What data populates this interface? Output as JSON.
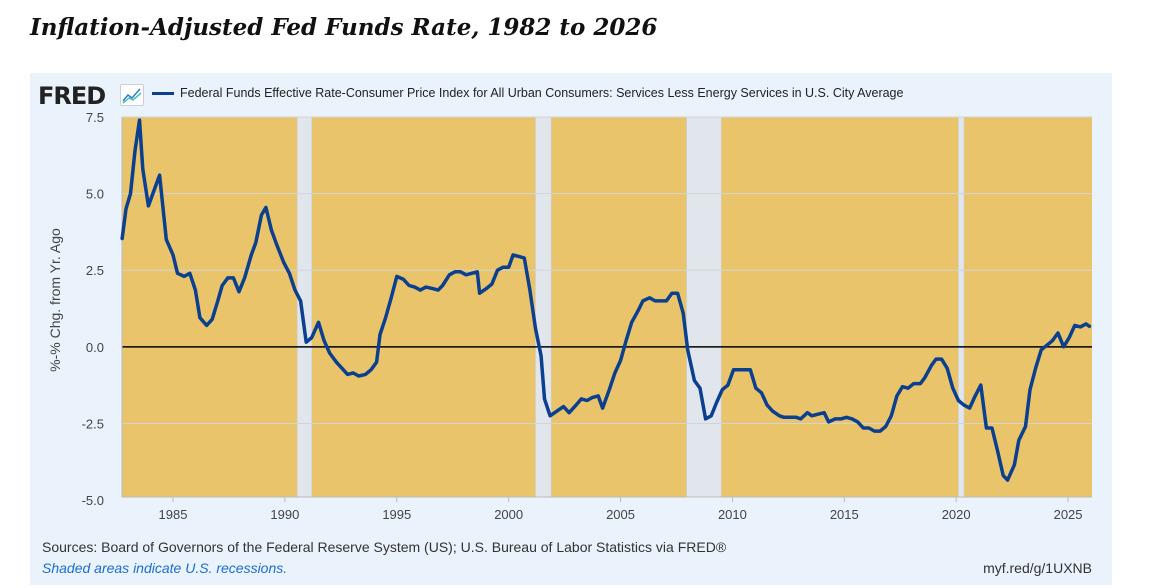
{
  "title": "Inflation-Adjusted Fed Funds Rate, 1982 to 2026",
  "logo": "FRED",
  "footer": {
    "sources": "Sources: Board of Governors of the Federal Reserve System (US); U.S. Bureau of Labor Statistics via FRED®",
    "recession_note": "Shaded areas indicate U.S. recessions.",
    "url": "myf.red/g/1UXNB"
  },
  "colors": {
    "line": "#0b3f8f",
    "plot_bg": "#e9c46a",
    "recession": "#e1e6ec",
    "panel": "#eaf2fb"
  },
  "chart_data": {
    "type": "line",
    "title": "",
    "xlabel": "",
    "ylabel": "%-% Chg. from Yr. Ago",
    "xlim": [
      1982.72,
      2026.07
    ],
    "ylim": [
      -4.9,
      7.5
    ],
    "yticks": [
      7.5,
      5.0,
      2.5,
      0.0,
      -2.5,
      -5.0
    ],
    "ytick_labels": [
      "7.5",
      "5.0",
      "2.5",
      "0.0",
      "-2.5",
      "-5.0"
    ],
    "xticks": [
      1985,
      1990,
      1995,
      2000,
      2005,
      2010,
      2015,
      2020,
      2025
    ],
    "xtick_labels": [
      "1985",
      "1990",
      "1995",
      "2000",
      "2005",
      "2010",
      "2015",
      "2020",
      "2025"
    ],
    "grid": true,
    "legend_position": "top",
    "recessions": [
      [
        1990.55,
        1991.2
      ],
      [
        2001.2,
        2001.9
      ],
      [
        2007.95,
        2009.5
      ],
      [
        2020.1,
        2020.35
      ]
    ],
    "series": [
      {
        "name": "Federal Funds Effective Rate-Consumer Price Index for All Urban Consumers: Services Less Energy Services in U.S. City Average",
        "x": [
          1982.72,
          1982.9,
          1983.1,
          1983.3,
          1983.5,
          1983.65,
          1983.9,
          1984.15,
          1984.4,
          1984.7,
          1985.0,
          1985.2,
          1985.5,
          1985.75,
          1986.0,
          1986.2,
          1986.5,
          1986.75,
          1987.0,
          1987.2,
          1987.45,
          1987.7,
          1987.95,
          1988.2,
          1988.5,
          1988.7,
          1988.95,
          1989.15,
          1989.4,
          1989.65,
          1989.95,
          1990.2,
          1990.45,
          1990.7,
          1990.95,
          1991.2,
          1991.5,
          1991.75,
          1992.0,
          1992.3,
          1992.55,
          1992.8,
          1993.05,
          1993.3,
          1993.6,
          1993.85,
          1994.1,
          1994.25,
          1994.5,
          1994.75,
          1995.0,
          1995.3,
          1995.55,
          1995.8,
          1996.05,
          1996.3,
          1996.6,
          1996.85,
          1997.05,
          1997.35,
          1997.6,
          1997.85,
          1998.1,
          1998.35,
          1998.6,
          1998.7,
          1999.0,
          1999.25,
          1999.5,
          1999.75,
          2000.0,
          2000.2,
          2000.45,
          2000.7,
          2000.95,
          2001.2,
          2001.45,
          2001.6,
          2001.85,
          2002.15,
          2002.45,
          2002.7,
          2002.95,
          2003.25,
          2003.5,
          2003.75,
          2004.0,
          2004.2,
          2004.5,
          2004.75,
          2005.0,
          2005.25,
          2005.5,
          2005.8,
          2006.0,
          2006.3,
          2006.55,
          2006.8,
          2007.05,
          2007.3,
          2007.55,
          2007.8,
          2008.0,
          2008.3,
          2008.55,
          2008.8,
          2009.05,
          2009.3,
          2009.55,
          2009.8,
          2010.05,
          2010.3,
          2010.55,
          2010.8,
          2011.05,
          2011.3,
          2011.55,
          2011.8,
          2012.1,
          2012.3,
          2012.6,
          2012.85,
          2013.05,
          2013.35,
          2013.55,
          2013.8,
          2014.1,
          2014.3,
          2014.6,
          2014.85,
          2015.1,
          2015.35,
          2015.6,
          2015.85,
          2016.1,
          2016.35,
          2016.6,
          2016.85,
          2017.1,
          2017.35,
          2017.6,
          2017.85,
          2018.1,
          2018.4,
          2018.6,
          2018.9,
          2019.1,
          2019.35,
          2019.6,
          2019.85,
          2020.1,
          2020.35,
          2020.6,
          2020.85,
          2021.1,
          2021.35,
          2021.6,
          2021.85,
          2022.1,
          2022.3,
          2022.6,
          2022.8,
          2023.1,
          2023.3,
          2023.55,
          2023.8,
          2024.05,
          2024.3,
          2024.55,
          2024.8,
          2025.05,
          2025.3,
          2025.55,
          2025.8,
          2026.0
        ],
        "y": [
          3.5,
          4.5,
          5.0,
          6.4,
          7.4,
          5.8,
          4.6,
          5.1,
          5.6,
          3.5,
          3.0,
          2.4,
          2.3,
          2.4,
          1.85,
          0.95,
          0.7,
          0.9,
          1.5,
          2.0,
          2.25,
          2.25,
          1.8,
          2.25,
          3.0,
          3.4,
          4.3,
          4.55,
          3.8,
          3.3,
          2.75,
          2.4,
          1.85,
          1.5,
          0.15,
          0.3,
          0.8,
          0.2,
          -0.2,
          -0.5,
          -0.7,
          -0.9,
          -0.85,
          -0.95,
          -0.9,
          -0.75,
          -0.5,
          0.4,
          0.95,
          1.6,
          2.3,
          2.2,
          2.0,
          1.95,
          1.85,
          1.95,
          1.9,
          1.85,
          2.0,
          2.35,
          2.45,
          2.45,
          2.35,
          2.4,
          2.45,
          1.75,
          1.9,
          2.05,
          2.5,
          2.6,
          2.6,
          3.0,
          2.95,
          2.9,
          1.85,
          0.6,
          -0.3,
          -1.7,
          -2.25,
          -2.1,
          -1.95,
          -2.15,
          -1.95,
          -1.7,
          -1.75,
          -1.65,
          -1.6,
          -2.0,
          -1.4,
          -0.85,
          -0.45,
          0.2,
          0.8,
          1.2,
          1.5,
          1.6,
          1.5,
          1.5,
          1.5,
          1.75,
          1.75,
          1.1,
          -0.1,
          -1.1,
          -1.35,
          -2.35,
          -2.25,
          -1.8,
          -1.4,
          -1.25,
          -0.75,
          -0.75,
          -0.75,
          -0.75,
          -1.35,
          -1.5,
          -1.9,
          -2.1,
          -2.25,
          -2.3,
          -2.3,
          -2.3,
          -2.35,
          -2.15,
          -2.25,
          -2.2,
          -2.15,
          -2.45,
          -2.35,
          -2.35,
          -2.3,
          -2.35,
          -2.45,
          -2.65,
          -2.65,
          -2.75,
          -2.75,
          -2.6,
          -2.25,
          -1.6,
          -1.3,
          -1.35,
          -1.2,
          -1.2,
          -1.0,
          -0.6,
          -0.4,
          -0.4,
          -0.7,
          -1.35,
          -1.75,
          -1.9,
          -2.0,
          -1.6,
          -1.25,
          -2.65,
          -2.65,
          -3.4,
          -4.2,
          -4.35,
          -3.85,
          -3.05,
          -2.6,
          -1.4,
          -0.7,
          -0.1,
          0.05,
          0.2,
          0.45,
          0.0,
          0.3,
          0.7,
          0.65,
          0.75,
          0.65
        ]
      }
    ]
  }
}
